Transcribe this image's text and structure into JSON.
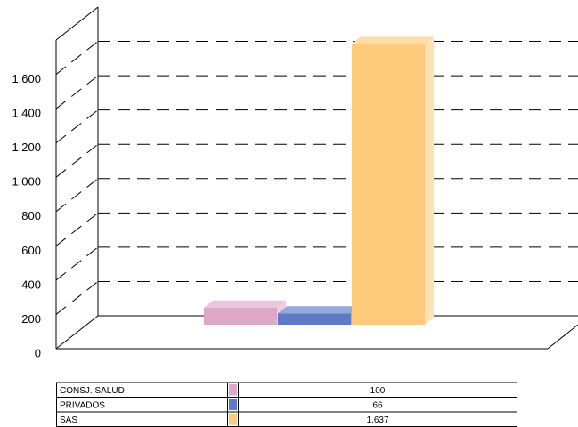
{
  "chart_data": {
    "type": "bar3d",
    "categories": [
      "CONSJ. SALUD",
      "PRIVADOS",
      "SAS"
    ],
    "values": [
      100,
      66,
      1637
    ],
    "value_labels": [
      "100",
      "66",
      "1.637"
    ],
    "colors": [
      "#dda8c8",
      "#5b7bc4",
      "#fdc97a"
    ],
    "ylim": [
      0,
      1800
    ],
    "yticks": [
      0,
      200,
      400,
      600,
      800,
      {
        "value": 1000,
        "label": "1.000"
      },
      {
        "value": 1200,
        "label": "1.200"
      },
      {
        "value": 1400,
        "label": "1.400"
      },
      {
        "value": 1600,
        "label": "1.600"
      }
    ],
    "grid": true
  }
}
